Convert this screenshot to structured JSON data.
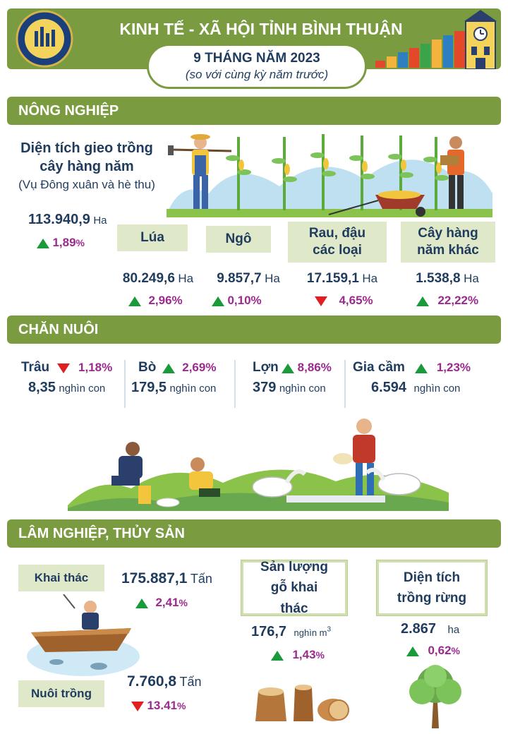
{
  "header": {
    "title": "KINH TẾ - XÃ HỘI TỈNH BÌNH THUẬN",
    "period": "9 THÁNG NĂM 2023",
    "note": "(so với cùng kỳ năm trước)"
  },
  "agriculture": {
    "section_title": "NÔNG NGHIỆP",
    "area_title_1": "Diện tích gieo trồng",
    "area_title_2": "cây hàng năm",
    "area_subtitle": "(Vụ Đông xuân và hè thu)",
    "total_value": "113.940,9",
    "total_unit": "Ha",
    "total_pct": "1,89",
    "total_pct_sign": "%",
    "crops": [
      {
        "label": "Lúa",
        "value": "80.249,6",
        "unit": "Ha",
        "pct": "2,96%",
        "trend": "up"
      },
      {
        "label": "Ngô",
        "value": "9.857,7",
        "unit": "Ha",
        "pct": "0,10%",
        "trend": "up"
      },
      {
        "label": "Rau, đậu các loại",
        "value": "17.159,1",
        "unit": "Ha",
        "pct": "4,65%",
        "trend": "down"
      },
      {
        "label": "Cây hàng năm khác",
        "value": "1.538,8",
        "unit": "Ha",
        "pct": "22,22%",
        "trend": "up"
      }
    ]
  },
  "livestock": {
    "section_title": "CHĂN NUÔI",
    "items": [
      {
        "label": "Trâu",
        "pct": "1,18%",
        "trend": "down",
        "value": "8,35",
        "unit": "nghìn con"
      },
      {
        "label": "Bò",
        "pct": "2,69%",
        "trend": "up",
        "value": "179,5",
        "unit": "nghìn con"
      },
      {
        "label": "Lợn",
        "pct": "8,86%",
        "trend": "up",
        "value": "379",
        "unit": "nghìn con"
      },
      {
        "label": "Gia cầm",
        "pct": "1,23%",
        "trend": "up",
        "value": "6.594",
        "unit": "nghìn con"
      }
    ]
  },
  "forestry": {
    "section_title": "LÂM NGHIỆP, THỦY SẢN",
    "catch_label": "Khai thác",
    "catch_value": "175.887,1",
    "catch_unit": "Tấn",
    "catch_pct": "2,41",
    "farm_label": "Nuôi trồng",
    "farm_value": "7.760,8",
    "farm_unit": "Tấn",
    "farm_pct": "13.41",
    "pct_sign": "%",
    "wood_label": "Sản lượng gỗ khai thác",
    "wood_value": "176,7",
    "wood_unit": "nghìn m",
    "wood_unit_sup": "3",
    "wood_pct": "1,43",
    "forest_label": "Diện tích trồng rừng",
    "forest_value": "2.867",
    "forest_unit": "ha",
    "forest_pct": "0,62"
  },
  "colors": {
    "section_green": "#7a9b3f",
    "label_bg": "#dfe8c9",
    "up": "#1a9a3a",
    "down": "#e02020",
    "pct": "#9b2a8f",
    "text": "#1f3c5e"
  },
  "icons": [
    "statistics-logo",
    "clock-tower",
    "bar-chart-stairs",
    "farmer-hoe",
    "corn-field",
    "farmer-basket",
    "wheelbarrow",
    "farmers-feeding-geese",
    "fisherman-boat",
    "tree-stumps",
    "tree"
  ]
}
